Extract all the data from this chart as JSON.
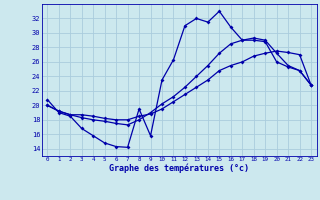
{
  "xlabel": "Graphe des températures (°c)",
  "bg_color": "#cce8ee",
  "grid_color": "#aaccdd",
  "line_color": "#0000aa",
  "ylim": [
    13.0,
    34.0
  ],
  "yticks": [
    14,
    16,
    18,
    20,
    22,
    24,
    26,
    28,
    30,
    32
  ],
  "xlim": [
    -0.5,
    23.5
  ],
  "xticks": [
    0,
    1,
    2,
    3,
    4,
    5,
    6,
    7,
    8,
    9,
    10,
    11,
    12,
    13,
    14,
    15,
    16,
    17,
    18,
    19,
    20,
    21,
    22,
    23
  ],
  "series1": [
    20.8,
    19.0,
    18.5,
    16.8,
    15.8,
    14.8,
    14.3,
    14.2,
    19.5,
    15.8,
    23.5,
    26.3,
    31.0,
    32.0,
    31.5,
    33.0,
    30.8,
    29.0,
    29.0,
    28.8,
    26.0,
    25.3,
    24.8,
    22.8
  ],
  "series2": [
    20.0,
    19.2,
    18.7,
    18.7,
    18.5,
    18.2,
    18.0,
    18.0,
    18.5,
    18.8,
    19.5,
    20.5,
    21.5,
    22.5,
    23.5,
    24.8,
    25.5,
    26.0,
    26.8,
    27.2,
    27.5,
    27.3,
    27.0,
    22.8
  ],
  "series3": [
    20.0,
    19.2,
    18.7,
    18.3,
    18.0,
    17.8,
    17.5,
    17.3,
    18.0,
    19.0,
    20.2,
    21.2,
    22.5,
    24.0,
    25.5,
    27.2,
    28.5,
    29.0,
    29.3,
    29.0,
    27.2,
    25.5,
    24.8,
    22.8
  ]
}
